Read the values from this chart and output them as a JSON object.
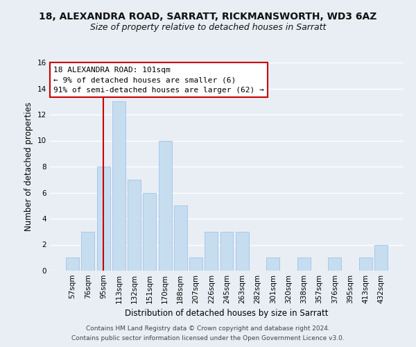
{
  "title": "18, ALEXANDRA ROAD, SARRATT, RICKMANSWORTH, WD3 6AZ",
  "subtitle": "Size of property relative to detached houses in Sarratt",
  "xlabel": "Distribution of detached houses by size in Sarratt",
  "ylabel": "Number of detached properties",
  "bar_labels": [
    "57sqm",
    "76sqm",
    "95sqm",
    "113sqm",
    "132sqm",
    "151sqm",
    "170sqm",
    "188sqm",
    "207sqm",
    "226sqm",
    "245sqm",
    "263sqm",
    "282sqm",
    "301sqm",
    "320sqm",
    "338sqm",
    "357sqm",
    "376sqm",
    "395sqm",
    "413sqm",
    "432sqm"
  ],
  "bar_values": [
    1,
    3,
    8,
    13,
    7,
    6,
    10,
    5,
    1,
    3,
    3,
    3,
    0,
    1,
    0,
    1,
    0,
    1,
    0,
    1,
    2
  ],
  "bar_color": "#c6ddf0",
  "bar_edge_color": "#a8c8e8",
  "ylim": [
    0,
    16
  ],
  "yticks": [
    0,
    2,
    4,
    6,
    8,
    10,
    12,
    14,
    16
  ],
  "vline_x": 2,
  "vline_color": "#cc0000",
  "annotation_title": "18 ALEXANDRA ROAD: 101sqm",
  "annotation_line1": "← 9% of detached houses are smaller (6)",
  "annotation_line2": "91% of semi-detached houses are larger (62) →",
  "annotation_box_color": "#ffffff",
  "annotation_box_edge_color": "#cc0000",
  "footer1": "Contains HM Land Registry data © Crown copyright and database right 2024.",
  "footer2": "Contains public sector information licensed under the Open Government Licence v3.0.",
  "background_color": "#e8eef4",
  "plot_bg_color": "#e8eef4",
  "grid_color": "#ffffff",
  "title_fontsize": 10,
  "subtitle_fontsize": 9,
  "axis_label_fontsize": 8.5,
  "tick_fontsize": 7.5,
  "footer_fontsize": 6.5
}
